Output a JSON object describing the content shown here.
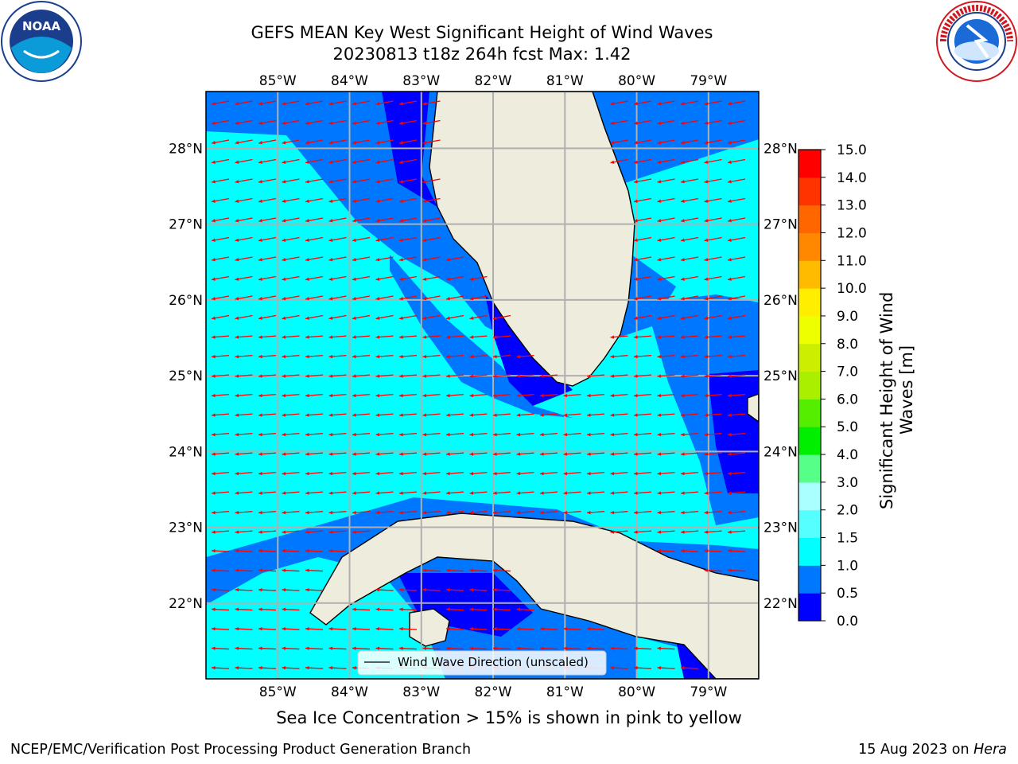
{
  "title": {
    "line1": "GEFS MEAN Key West Significant Height of Wind Waves",
    "line2": "20230813 t18z 264h fcst   Max: 1.42"
  },
  "logos": {
    "left": {
      "name": "noaa-logo",
      "text": "NOAA",
      "ring_text": "NATIONAL OCEANIC AND ATMOSPHERIC ADMINISTRATION · U.S. DEPARTMENT OF COMMERCE"
    },
    "right": {
      "name": "nws-logo",
      "ring_text": "NATIONAL WEATHER SERVICE"
    }
  },
  "map": {
    "lon_labels": [
      "85°W",
      "84°W",
      "83°W",
      "82°W",
      "81°W",
      "80°W",
      "79°W"
    ],
    "lat_labels": [
      "28°N",
      "27°N",
      "26°N",
      "25°N",
      "24°N",
      "23°N",
      "22°N"
    ],
    "lon_values": [
      -85,
      -84,
      -83,
      -82,
      -81,
      -80,
      -79
    ],
    "lat_values": [
      28,
      27,
      26,
      25,
      24,
      23,
      22
    ],
    "extent": {
      "lon_min": -86.0,
      "lon_max": -78.3,
      "lat_min": 21.0,
      "lat_max": 28.75
    },
    "legend_label": "Wind Wave Direction (unscaled)",
    "arrow_color": "#ff0000",
    "land_color": "#eeecdc",
    "grid_color": "#b0b0b0"
  },
  "colorbar": {
    "label": "Significant Height of Wind Waves [m]",
    "label_line1": "Significant Height of Wind",
    "label_line2": "Waves [m]",
    "ticks": [
      "0.0",
      "0.5",
      "1.0",
      "1.5",
      "2.0",
      "3.0",
      "4.0",
      "5.0",
      "6.0",
      "7.0",
      "8.0",
      "9.0",
      "10.0",
      "11.0",
      "12.0",
      "13.0",
      "14.0",
      "15.0"
    ],
    "colors": [
      "#0000ff",
      "#0077ff",
      "#00ffff",
      "#55ffff",
      "#aaffff",
      "#55ff88",
      "#00ee00",
      "#55ee00",
      "#aaee00",
      "#ccee00",
      "#eeff00",
      "#ffee00",
      "#ffbb00",
      "#ff8800",
      "#ff6600",
      "#ff3300",
      "#ff0000"
    ]
  },
  "footer": {
    "note": "Sea Ice Concentration > 15% is shown in pink to yellow",
    "left": "NCEP/EMC/Verification Post Processing Product Generation Branch",
    "right_prefix": "15 Aug 2023 on ",
    "right_host": "Hera"
  },
  "chart_data": {
    "type": "heatmap",
    "title": "GEFS MEAN Key West Significant Height of Wind Waves",
    "subtitle": "20230813 t18z 264h fcst   Max: 1.42",
    "max_value": 1.42,
    "units": "m",
    "levels": [
      0.0,
      0.5,
      1.0,
      1.5,
      2.0,
      3.0,
      4.0,
      5.0,
      6.0,
      7.0,
      8.0,
      9.0,
      10.0,
      11.0,
      12.0,
      13.0,
      14.0,
      15.0
    ],
    "xlim": [
      -86.0,
      -78.3
    ],
    "ylim": [
      21.0,
      28.75
    ],
    "dominant_wave_direction": "westward (arrows point west)",
    "grid": true
  }
}
